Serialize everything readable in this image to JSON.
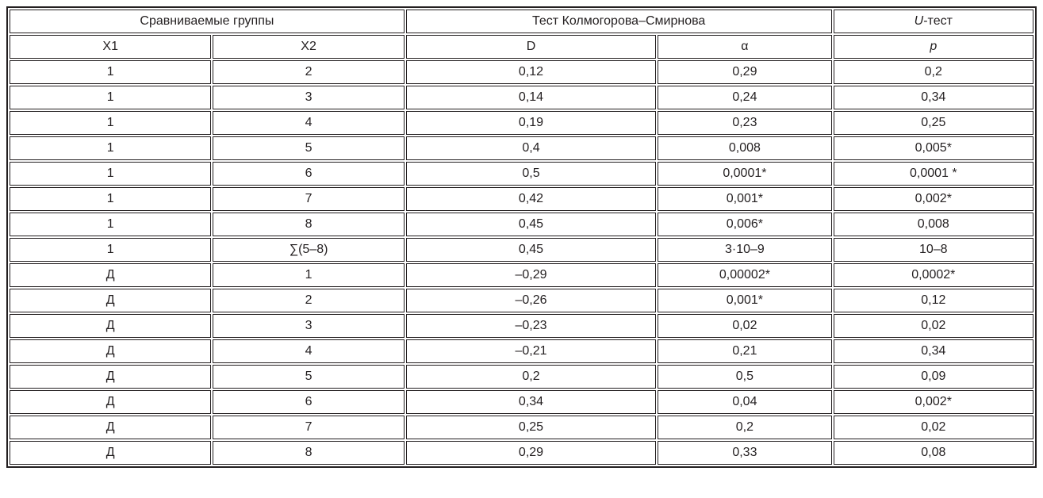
{
  "page": {
    "background_color": "#ffffff",
    "border_color": "#231f20",
    "text_color": "#231f20"
  },
  "table": {
    "header_groups": {
      "compared_groups": "Сравниваемые группы",
      "ks_test": "Тест Колмогорова–Смирнова",
      "u_test_italic": "U",
      "u_test_rest": "-тест"
    },
    "columns": [
      "X1",
      "X2",
      "D",
      "α",
      "p"
    ],
    "rows": [
      [
        "1",
        "2",
        "0,12",
        "0,29",
        "0,2"
      ],
      [
        "1",
        "3",
        "0,14",
        "0,24",
        "0,34"
      ],
      [
        "1",
        "4",
        "0,19",
        "0,23",
        "0,25"
      ],
      [
        "1",
        "5",
        "0,4",
        "0,008",
        "0,005*"
      ],
      [
        "1",
        "6",
        "0,5",
        "0,0001*",
        "0,0001 *"
      ],
      [
        "1",
        "7",
        "0,42",
        "0,001*",
        "0,002*"
      ],
      [
        "1",
        "8",
        "0,45",
        "0,006*",
        "0,008"
      ],
      [
        "1",
        "∑(5–8)",
        "0,45",
        "3·10–9",
        "10–8"
      ],
      [
        "Д",
        "1",
        "–0,29",
        "0,00002*",
        "0,0002*"
      ],
      [
        "Д",
        "2",
        "–0,26",
        "0,001*",
        "0,12"
      ],
      [
        "Д",
        "3",
        "–0,23",
        "0,02",
        "0,02"
      ],
      [
        "Д",
        "4",
        "–0,21",
        "0,21",
        "0,34"
      ],
      [
        "Д",
        "5",
        "0,2",
        "0,5",
        "0,09"
      ],
      [
        "Д",
        "6",
        "0,34",
        "0,04",
        "0,002*"
      ],
      [
        "Д",
        "7",
        "0,25",
        "0,2",
        "0,02"
      ],
      [
        "Д",
        "8",
        "0,29",
        "0,33",
        "0,08"
      ]
    ]
  }
}
